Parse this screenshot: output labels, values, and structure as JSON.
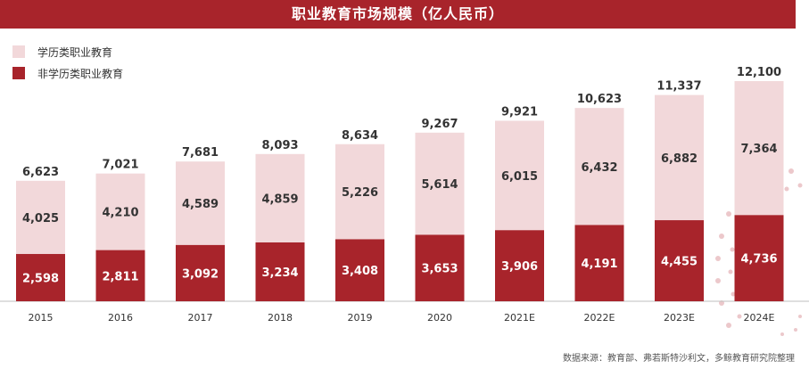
{
  "header": {
    "title": "职业教育市场规模（亿人民币）"
  },
  "legend": [
    {
      "name": "学历类职业教育",
      "color": "#f2d8da"
    },
    {
      "name": "非学历类职业教育",
      "color": "#a8242b"
    }
  ],
  "source": "数据来源：教育部、弗若斯特沙利文，多鲸教育研究院整理",
  "colors": {
    "accent": "#a8242b",
    "light": "#f2d8da"
  },
  "chart_data": {
    "type": "bar",
    "stacked": true,
    "title": "职业教育市场规模（亿人民币）",
    "categories": [
      "2015",
      "2016",
      "2017",
      "2018",
      "2019",
      "2020",
      "2021E",
      "2022E",
      "2023E",
      "2024E"
    ],
    "series": [
      {
        "name": "非学历类职业教育",
        "values": [
          2598,
          2811,
          3092,
          3234,
          3408,
          3653,
          3906,
          4191,
          4455,
          4736
        ]
      },
      {
        "name": "学历类职业教育",
        "values": [
          4025,
          4210,
          4589,
          4859,
          5226,
          5614,
          6015,
          6432,
          6882,
          7364
        ]
      }
    ],
    "totals": [
      6623,
      7021,
      7681,
      8093,
      8634,
      9267,
      9921,
      10623,
      11337,
      12100
    ],
    "value_labels": {
      "bottom": [
        "2,598",
        "2,811",
        "3,092",
        "3,234",
        "3,408",
        "3,653",
        "3,906",
        "4,191",
        "4,455",
        "4,736"
      ],
      "top": [
        "4,025",
        "4,210",
        "4,589",
        "4,859",
        "5,226",
        "5,614",
        "6,015",
        "6,432",
        "6,882",
        "7,364"
      ],
      "totals": [
        "6,623",
        "7,021",
        "7,681",
        "8,093",
        "8,634",
        "9,267",
        "9,921",
        "10,623",
        "11,337",
        "12,100"
      ]
    },
    "ylim": [
      0,
      12100
    ],
    "grid": false,
    "legend_position": "top-left"
  }
}
